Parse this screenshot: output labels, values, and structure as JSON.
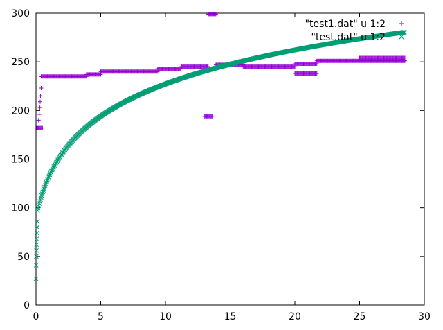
{
  "chart_data": {
    "type": "scatter",
    "title": "",
    "xlabel": "",
    "ylabel": "",
    "xlim": [
      0,
      30
    ],
    "ylim": [
      0,
      300
    ],
    "xticks": [
      0,
      5,
      10,
      15,
      20,
      25,
      30
    ],
    "yticks": [
      0,
      50,
      100,
      150,
      200,
      250,
      300
    ],
    "grid": false,
    "legend_position": "top-right",
    "series": [
      {
        "name": "\"test1.dat\" u 1:2",
        "marker": "plus",
        "color": "#9400d3",
        "segments": [
          {
            "x": [
              0.05,
              0.5
            ],
            "y": 182
          },
          {
            "x": [
              0.4,
              3.9
            ],
            "y": 235
          },
          {
            "x": [
              3.9,
              5.0
            ],
            "y": 237
          },
          {
            "x": [
              5.0,
              9.4
            ],
            "y": 240
          },
          {
            "x": [
              9.4,
              11.2
            ],
            "y": 243
          },
          {
            "x": [
              11.2,
              13.3
            ],
            "y": 245
          },
          {
            "x": [
              13.0,
              13.6
            ],
            "y": 194
          },
          {
            "x": [
              13.3,
              13.9
            ],
            "y": 299
          },
          {
            "x": [
              13.9,
              16.0
            ],
            "y": 247
          },
          {
            "x": [
              16.0,
              20.0
            ],
            "y": 245
          },
          {
            "x": [
              20.0,
              21.7
            ],
            "y": 238
          },
          {
            "x": [
              20.0,
              21.7
            ],
            "y": 248
          },
          {
            "x": [
              21.7,
              28.5
            ],
            "y": 251
          },
          {
            "x": [
              25.0,
              28.5
            ],
            "y": 254
          }
        ],
        "points": [
          {
            "x": 0.2,
            "y": 190
          },
          {
            "x": 0.25,
            "y": 196
          },
          {
            "x": 0.3,
            "y": 203
          },
          {
            "x": 0.32,
            "y": 209
          },
          {
            "x": 0.35,
            "y": 215
          },
          {
            "x": 0.4,
            "y": 223
          }
        ]
      },
      {
        "name": "\"test.dat\" u 1:2",
        "marker": "cross",
        "color": "#009e73",
        "function": "y = 90 + 53.5 * ln(1 + 1.2 * x)",
        "x_range": [
          0,
          28.5
        ],
        "points": [
          {
            "x": 0.0,
            "y": 27
          },
          {
            "x": 0.01,
            "y": 41
          },
          {
            "x": 0.02,
            "y": 50
          },
          {
            "x": 0.03,
            "y": 56
          },
          {
            "x": 0.04,
            "y": 62
          },
          {
            "x": 0.05,
            "y": 68
          },
          {
            "x": 0.07,
            "y": 74
          },
          {
            "x": 0.09,
            "y": 80
          },
          {
            "x": 0.12,
            "y": 86
          }
        ]
      }
    ]
  }
}
